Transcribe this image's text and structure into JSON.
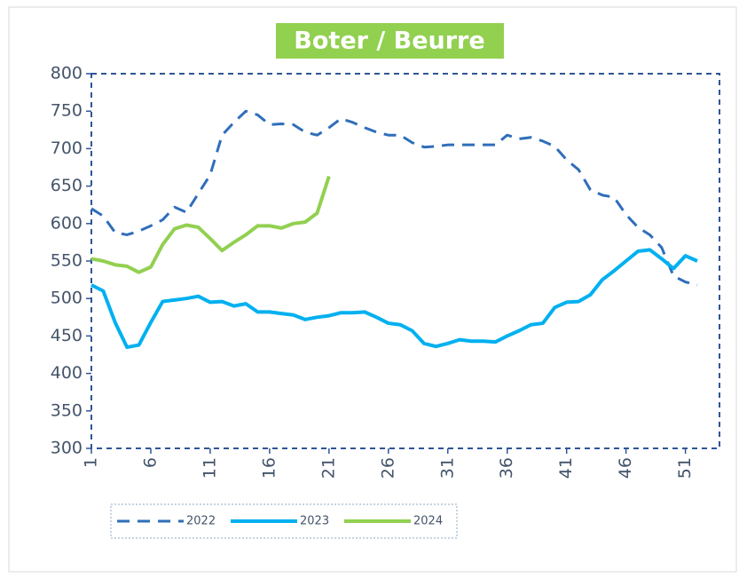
{
  "chart_data": {
    "type": "line",
    "title": "Boter / Beurre",
    "x": [
      1,
      2,
      3,
      4,
      5,
      6,
      7,
      8,
      9,
      10,
      11,
      12,
      13,
      14,
      15,
      16,
      17,
      18,
      19,
      20,
      21,
      22,
      23,
      24,
      25,
      26,
      27,
      28,
      29,
      30,
      31,
      32,
      33,
      34,
      35,
      36,
      37,
      38,
      39,
      40,
      41,
      42,
      43,
      44,
      45,
      46,
      47,
      48,
      49,
      50,
      51,
      52
    ],
    "xlim": [
      1,
      52
    ],
    "xticks": [
      1,
      6,
      11,
      16,
      21,
      26,
      31,
      36,
      41,
      46,
      51
    ],
    "ylim": [
      300,
      800
    ],
    "yticks": [
      300,
      350,
      400,
      450,
      500,
      550,
      600,
      650,
      700,
      750,
      800
    ],
    "legend": "bottom-left",
    "series": [
      {
        "name": "2022",
        "color": "#2f6eba",
        "dashed": true,
        "values": [
          620,
          610,
          588,
          585,
          590,
          597,
          605,
          622,
          615,
          640,
          665,
          718,
          735,
          750,
          745,
          732,
          733,
          732,
          722,
          718,
          728,
          740,
          735,
          728,
          722,
          718,
          718,
          708,
          702,
          703,
          705,
          705,
          705,
          705,
          705,
          718,
          713,
          715,
          710,
          703,
          685,
          672,
          645,
          638,
          635,
          612,
          595,
          585,
          568,
          530,
          522,
          518
        ]
      },
      {
        "name": "2023",
        "color": "#00b0f0",
        "dashed": false,
        "values": [
          518,
          510,
          468,
          435,
          438,
          468,
          496,
          498,
          500,
          503,
          495,
          496,
          490,
          493,
          482,
          482,
          480,
          478,
          472,
          475,
          477,
          481,
          481,
          482,
          475,
          467,
          465,
          457,
          440,
          436,
          440,
          445,
          443,
          443,
          442,
          450,
          457,
          465,
          467,
          488,
          495,
          496,
          505,
          525,
          537,
          550,
          563,
          565,
          553,
          540,
          557,
          550
        ]
      },
      {
        "name": "2024",
        "color": "#92d050",
        "dashed": false,
        "values": [
          553,
          550,
          545,
          543,
          535,
          542,
          572,
          593,
          598,
          595,
          580,
          564,
          575,
          585,
          597,
          597,
          594,
          600,
          602,
          614,
          663,
          null,
          null,
          null,
          null,
          null,
          null,
          null,
          null,
          null,
          null,
          null,
          null,
          null,
          null,
          null,
          null,
          null,
          null,
          null,
          null,
          null,
          null,
          null,
          null,
          null,
          null,
          null,
          null,
          null,
          null,
          null
        ]
      }
    ]
  }
}
